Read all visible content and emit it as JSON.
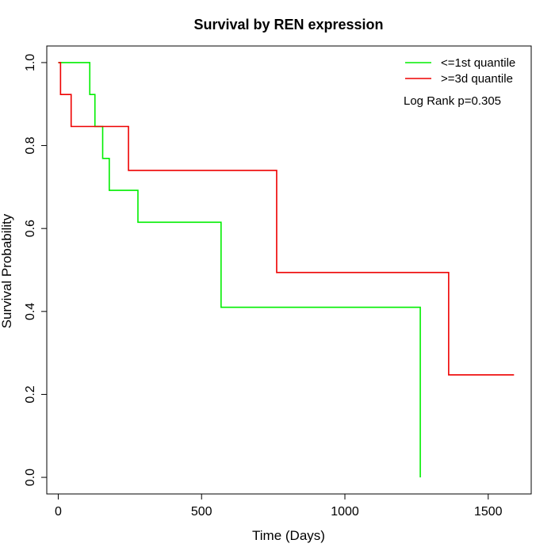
{
  "chart_data": {
    "type": "line",
    "title": "Survival by REN expression",
    "xlabel": "Time (Days)",
    "ylabel": "Survival Probability",
    "xlim": [
      -40,
      1650
    ],
    "ylim": [
      -0.04,
      1.04
    ],
    "x_ticks": [
      0,
      500,
      1000,
      1500
    ],
    "y_ticks": [
      0.0,
      0.2,
      0.4,
      0.6,
      0.8,
      1.0
    ],
    "x_tick_labels": [
      "0",
      "500",
      "1000",
      "1500"
    ],
    "y_tick_labels": [
      "0.0",
      "0.2",
      "0.4",
      "0.6",
      "0.8",
      "1.0"
    ],
    "grid": false,
    "legend_position": "top-right",
    "series": [
      {
        "name": "<=1st quantile",
        "color": "#00ee00",
        "steps": [
          [
            0,
            1.0
          ],
          [
            110,
            0.923
          ],
          [
            128,
            0.846
          ],
          [
            155,
            0.769
          ],
          [
            178,
            0.692
          ],
          [
            278,
            0.615
          ],
          [
            568,
            0.41
          ],
          [
            1263,
            0.0
          ]
        ],
        "end_x": 1263
      },
      {
        "name": ">=3d quantile",
        "color": "#ee0000",
        "steps": [
          [
            0,
            1.0
          ],
          [
            8,
            0.923
          ],
          [
            45,
            0.846
          ],
          [
            245,
            0.74
          ],
          [
            762,
            0.494
          ],
          [
            1362,
            0.247
          ]
        ],
        "end_x": 1590
      }
    ],
    "annotation": "Log Rank p=0.305"
  }
}
